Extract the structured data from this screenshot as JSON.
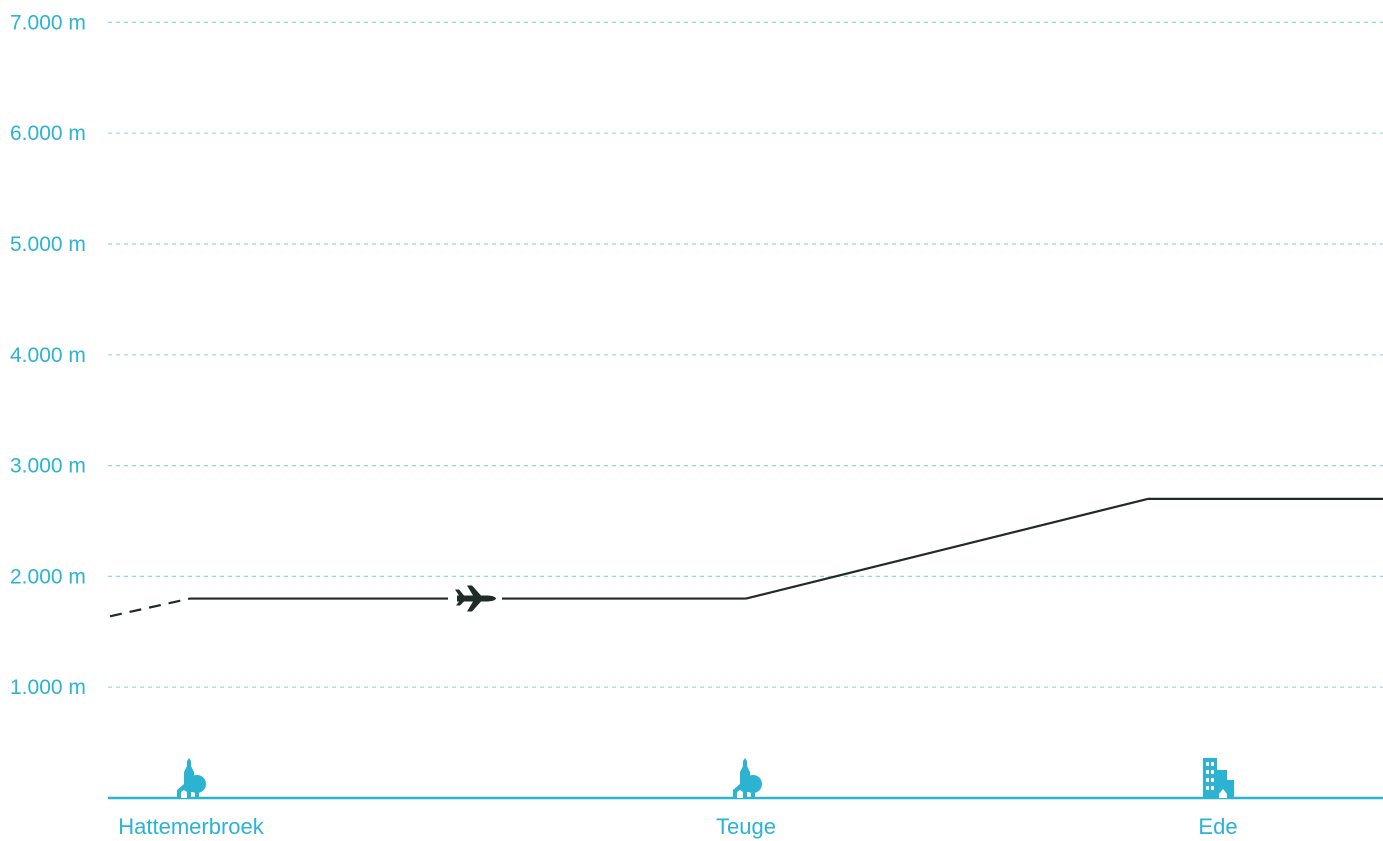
{
  "chart_data": {
    "type": "line",
    "title": "",
    "xlabel": "",
    "ylabel": "",
    "unit": "m",
    "ylim": [
      0,
      7000
    ],
    "yticks": [
      {
        "value": 1000,
        "label": "1.000 m"
      },
      {
        "value": 2000,
        "label": "2.000 m"
      },
      {
        "value": 3000,
        "label": "3.000 m"
      },
      {
        "value": 4000,
        "label": "4.000 m"
      },
      {
        "value": 5000,
        "label": "5.000 m"
      },
      {
        "value": 6000,
        "label": "6.000 m"
      },
      {
        "value": 7000,
        "label": "7.000 m"
      }
    ],
    "grid": true,
    "locations": [
      {
        "name": "Hattemerbroek",
        "icon": "village-icon"
      },
      {
        "name": "Teuge",
        "icon": "village-icon"
      },
      {
        "name": "Ede",
        "icon": "city-icon"
      }
    ],
    "series": [
      {
        "points": [
          {
            "location": "before Hattemerbroek",
            "altitude": 1640,
            "segment": "dashed"
          },
          {
            "location": "Hattemerbroek",
            "altitude": 1800
          },
          {
            "location": "Teuge",
            "altitude": 1800
          },
          {
            "location": "Ede",
            "altitude": 2700
          },
          {
            "location": "after Ede",
            "altitude": 2700
          }
        ]
      }
    ],
    "airplane_marker": {
      "icon": "airplane-icon",
      "altitude": 1800,
      "between": [
        "Hattemerbroek",
        "Teuge"
      ]
    },
    "colors": {
      "axis": "#2bb3d1",
      "grid": "#8fd6e6",
      "path": "#1f2b27"
    }
  }
}
